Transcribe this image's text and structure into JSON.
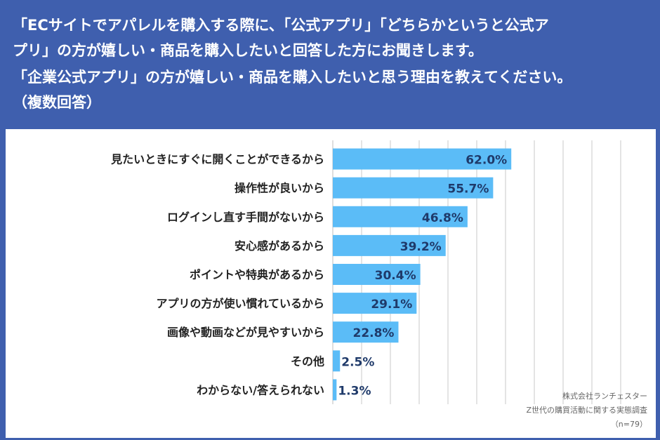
{
  "header": {
    "line1": "「ECサイトでアパレルを購入する際に、「公式アプリ」「どちらかというと公式ア",
    "line2": "プリ」の方が嬉しい・商品を購入したいと回答した方にお聞きします。",
    "line3": "「企業公式アプリ」の方が嬉しい・商品を購入したいと思う理由を教えてください。",
    "line4": "（複数回答）"
  },
  "source": {
    "company": "株式会社ランチェスター",
    "survey": "Z世代の購買活動に関する実態調査",
    "n": "（n=79）"
  },
  "colors": {
    "bar": "#5bbcf7",
    "header_bg": "#3f5fae",
    "grid": "#c8c8c8",
    "value_text": "#1f3a6a"
  },
  "chart_data": {
    "type": "bar",
    "orientation": "horizontal",
    "categories": [
      "見たいときにすぐに開くことができるから",
      "操作性が良いから",
      "ログインし直す手間がないから",
      "安心感があるから",
      "ポイントや特典があるから",
      "アプリの方が使い慣れているから",
      "画像や動画などが見やすいから",
      "その他",
      "わからない/答えられない"
    ],
    "values": [
      62.0,
      55.7,
      46.8,
      39.2,
      30.4,
      29.1,
      22.8,
      2.5,
      1.3
    ],
    "value_labels": [
      "62.0%",
      "55.7%",
      "46.8%",
      "39.2%",
      "30.4%",
      "29.1%",
      "22.8%",
      "2.5%",
      "1.3%"
    ],
    "xlim": [
      0,
      100
    ],
    "grid": true
  }
}
